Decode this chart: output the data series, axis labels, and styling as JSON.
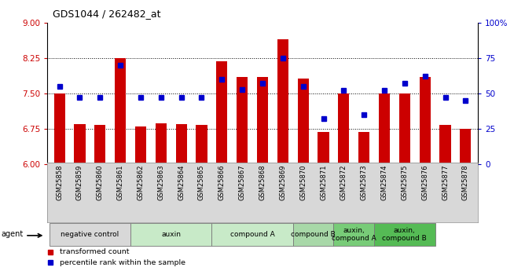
{
  "title": "GDS1044 / 262482_at",
  "samples": [
    "GSM25858",
    "GSM25859",
    "GSM25860",
    "GSM25861",
    "GSM25862",
    "GSM25863",
    "GSM25864",
    "GSM25865",
    "GSM25866",
    "GSM25867",
    "GSM25868",
    "GSM25869",
    "GSM25870",
    "GSM25871",
    "GSM25872",
    "GSM25873",
    "GSM25874",
    "GSM25875",
    "GSM25876",
    "GSM25877",
    "GSM25878"
  ],
  "bar_values": [
    7.5,
    6.85,
    6.83,
    8.25,
    6.8,
    6.87,
    6.85,
    6.83,
    8.18,
    7.85,
    7.85,
    8.65,
    7.82,
    6.68,
    7.5,
    6.68,
    7.5,
    7.5,
    7.85,
    6.83,
    6.75
  ],
  "dot_values": [
    55,
    47,
    47,
    70,
    47,
    47,
    47,
    47,
    60,
    53,
    57,
    75,
    55,
    32,
    52,
    35,
    52,
    57,
    62,
    47,
    45
  ],
  "bar_color": "#cc0000",
  "dot_color": "#0000cc",
  "ylim_left": [
    6,
    9
  ],
  "ylim_right": [
    0,
    100
  ],
  "yticks_left": [
    6,
    6.75,
    7.5,
    8.25,
    9
  ],
  "yticks_right": [
    0,
    25,
    50,
    75,
    100
  ],
  "ytick_labels_right": [
    "0",
    "25",
    "50",
    "75",
    "100%"
  ],
  "grid_values": [
    6.75,
    7.5,
    8.25
  ],
  "groups": [
    {
      "label": "negative control",
      "start": 0,
      "end": 3,
      "color": "#d8d8d8"
    },
    {
      "label": "auxin",
      "start": 4,
      "end": 7,
      "color": "#c8eac8"
    },
    {
      "label": "compound A",
      "start": 8,
      "end": 11,
      "color": "#c8eac8"
    },
    {
      "label": "compound B",
      "start": 12,
      "end": 13,
      "color": "#a8d8a8"
    },
    {
      "label": "auxin,\ncompound A",
      "start": 14,
      "end": 15,
      "color": "#78cc78"
    },
    {
      "label": "auxin,\ncompound B",
      "start": 16,
      "end": 18,
      "color": "#55bb55"
    }
  ],
  "xtick_bgcolor": "#d8d8d8",
  "legend_items": [
    {
      "label": "transformed count",
      "color": "#cc0000"
    },
    {
      "label": "percentile rank within the sample",
      "color": "#0000cc"
    }
  ],
  "bar_bottom": 6,
  "agent_label": "agent"
}
